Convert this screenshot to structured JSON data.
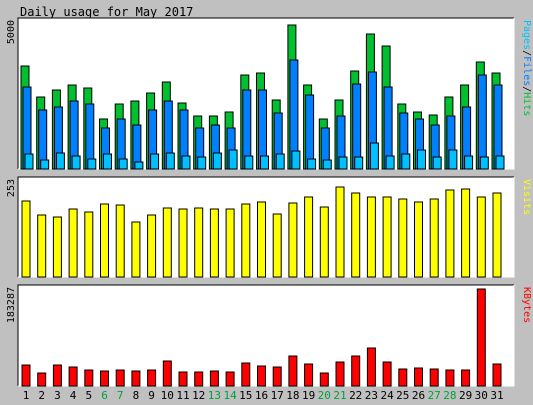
{
  "title": "Daily usage for May 2017",
  "colors": {
    "background": "#c0c0c0",
    "panel": "#ffffff",
    "hits": "#00c030",
    "files": "#0080ff",
    "pages": "#00c0ff",
    "visits": "#ffff00",
    "kbytes": "#ff0000",
    "weekend_label": "#00a040",
    "label": "#000000"
  },
  "chart_data": [
    {
      "type": "bar",
      "panel": "hits-files-pages",
      "categories": [
        "1",
        "2",
        "3",
        "4",
        "5",
        "6",
        "7",
        "8",
        "9",
        "10",
        "11",
        "12",
        "13",
        "14",
        "15",
        "16",
        "17",
        "18",
        "19",
        "20",
        "21",
        "22",
        "23",
        "24",
        "25",
        "26",
        "27",
        "28",
        "29",
        "30",
        "31"
      ],
      "weekend_days": [
        "6",
        "7",
        "13",
        "14",
        "20",
        "21",
        "27",
        "28"
      ],
      "ymax_label": "5000",
      "ylim": [
        0,
        5000
      ],
      "right_label_parts": [
        {
          "text": "Pages",
          "color_key": "pages"
        },
        {
          "text": "/",
          "color_key": "label"
        },
        {
          "text": "Files",
          "color_key": "files"
        },
        {
          "text": "/",
          "color_key": "label"
        },
        {
          "text": "Hits",
          "color_key": "hits"
        }
      ],
      "series": [
        {
          "name": "Hits",
          "color_key": "hits",
          "values": [
            3500,
            2450,
            2700,
            2850,
            2750,
            1700,
            2200,
            2300,
            2600,
            2950,
            2250,
            1800,
            1800,
            1950,
            3200,
            3250,
            2350,
            4900,
            2850,
            1700,
            2350,
            3350,
            4600,
            4200,
            2200,
            1950,
            1850,
            2450,
            2850,
            3650,
            3250
          ]
        },
        {
          "name": "Files",
          "color_key": "files",
          "values": [
            2800,
            2000,
            2100,
            2300,
            2200,
            1400,
            1700,
            1500,
            2000,
            2300,
            2000,
            1400,
            1500,
            1400,
            2700,
            2700,
            1900,
            3700,
            2500,
            1400,
            1800,
            2900,
            3300,
            2800,
            1900,
            1700,
            1500,
            1800,
            2100,
            3200,
            2850
          ]
        },
        {
          "name": "Pages",
          "color_key": "pages",
          "values": [
            500,
            300,
            550,
            450,
            350,
            500,
            350,
            250,
            500,
            550,
            450,
            400,
            550,
            650,
            450,
            450,
            500,
            600,
            350,
            300,
            400,
            400,
            900,
            450,
            500,
            650,
            400,
            650,
            450,
            400,
            450
          ]
        }
      ]
    },
    {
      "type": "bar",
      "panel": "visits",
      "categories": [
        "1",
        "2",
        "3",
        "4",
        "5",
        "6",
        "7",
        "8",
        "9",
        "10",
        "11",
        "12",
        "13",
        "14",
        "15",
        "16",
        "17",
        "18",
        "19",
        "20",
        "21",
        "22",
        "23",
        "24",
        "25",
        "26",
        "27",
        "28",
        "29",
        "30",
        "31"
      ],
      "ymax_label": "253",
      "ylim": [
        0,
        253
      ],
      "right_label_parts": [
        {
          "text": "Visits",
          "color_key": "visits"
        }
      ],
      "series": [
        {
          "name": "Visits",
          "color_key": "visits",
          "values": [
            200,
            163,
            158,
            180,
            171,
            193,
            190,
            146,
            163,
            181,
            179,
            182,
            178,
            178,
            193,
            197,
            166,
            196,
            211,
            185,
            236,
            221,
            212,
            211,
            205,
            198,
            205,
            230,
            232,
            211,
            221
          ]
        }
      ]
    },
    {
      "type": "bar",
      "panel": "kbytes",
      "categories": [
        "1",
        "2",
        "3",
        "4",
        "5",
        "6",
        "7",
        "8",
        "9",
        "10",
        "11",
        "12",
        "13",
        "14",
        "15",
        "16",
        "17",
        "18",
        "19",
        "20",
        "21",
        "22",
        "23",
        "24",
        "25",
        "26",
        "27",
        "28",
        "29",
        "30",
        "31"
      ],
      "ymax_label": "183287",
      "ylim": [
        0,
        183287
      ],
      "right_label_parts": [
        {
          "text": "KBytes",
          "color_key": "kbytes"
        }
      ],
      "series": [
        {
          "name": "KBytes",
          "color_key": "kbytes",
          "values": [
            40000,
            25000,
            39000,
            35000,
            31000,
            29000,
            30000,
            29000,
            31000,
            48000,
            27000,
            27000,
            28000,
            27000,
            43000,
            38000,
            36000,
            56000,
            41000,
            24000,
            45000,
            57000,
            72000,
            46000,
            33000,
            34000,
            33000,
            31000,
            31000,
            183287,
            41000
          ]
        }
      ]
    }
  ]
}
